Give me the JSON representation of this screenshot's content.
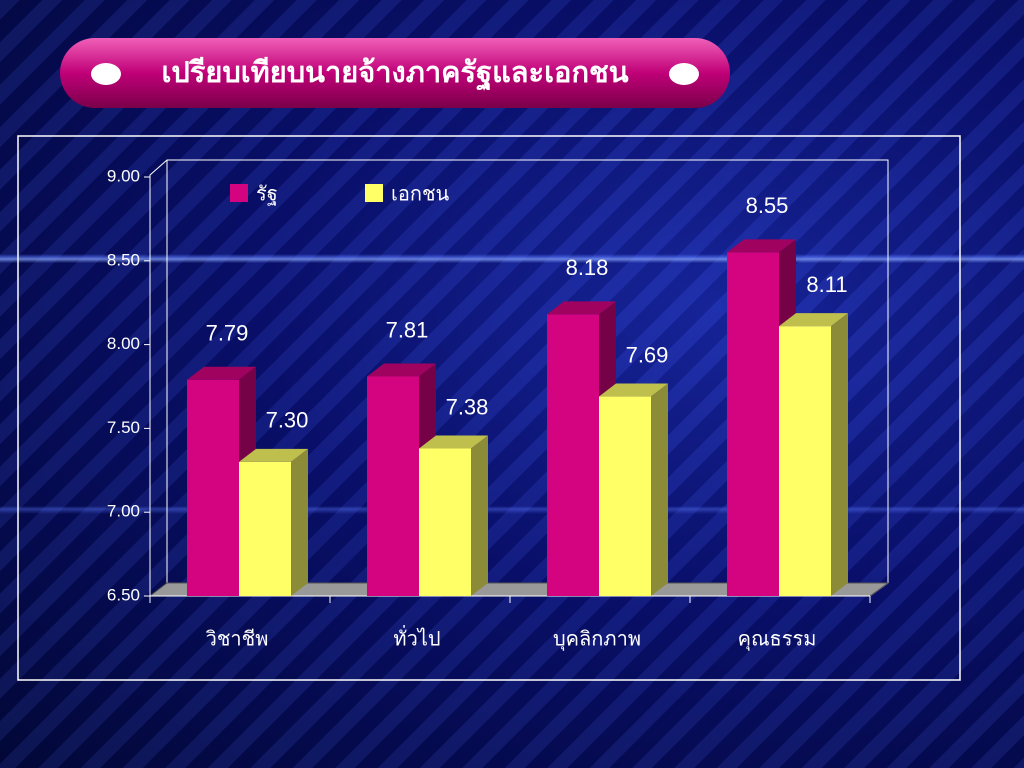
{
  "chart_data": {
    "type": "bar3d",
    "title": "เปรียบเทียบนายจ้างภาครัฐและเอกชน",
    "categories": [
      "วิชาชีพ",
      "ทั่วไป",
      "บุคลิกภาพ",
      "คุณธรรม"
    ],
    "series": [
      {
        "name": "รัฐ",
        "color": "#d4037f",
        "values": [
          7.79,
          7.81,
          8.18,
          8.55
        ],
        "value_labels": [
          "7.79",
          "7.81",
          "8.18",
          "8.55"
        ]
      },
      {
        "name": "เอกชน",
        "color": "#ffff66",
        "values": [
          7.3,
          7.38,
          7.69,
          8.11
        ],
        "value_labels": [
          "7.30",
          "7.38",
          "7.69",
          "8.11"
        ]
      }
    ],
    "ylim": [
      6.5,
      9.0
    ],
    "yticks": [
      {
        "value": 6.5,
        "label": "6.50"
      },
      {
        "value": 7.0,
        "label": "7.00"
      },
      {
        "value": 7.5,
        "label": "7.50"
      },
      {
        "value": 8.0,
        "label": "8.00"
      },
      {
        "value": 8.5,
        "label": "8.50"
      },
      {
        "value": 9.0,
        "label": "9.00"
      }
    ]
  }
}
